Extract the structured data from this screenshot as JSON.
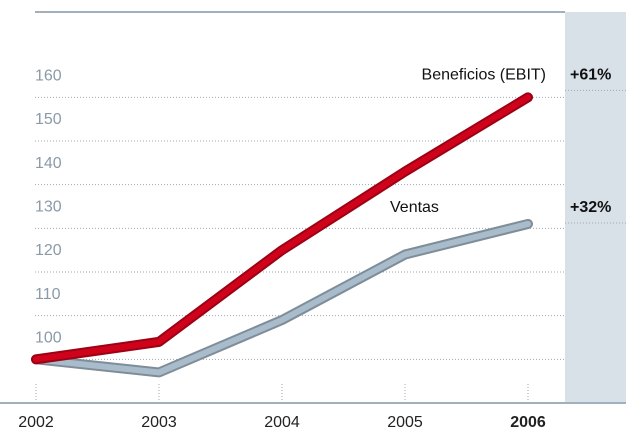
{
  "chart_data": {
    "type": "line",
    "categories": [
      "2002",
      "2003",
      "2004",
      "2005",
      "2006"
    ],
    "series": [
      {
        "name": "Beneficios (EBIT)",
        "color": "#d0021b",
        "values": [
          100,
          104,
          125,
          143,
          160
        ],
        "annotation": "+61%"
      },
      {
        "name": "Ventas",
        "color": "#a9bccb",
        "values": [
          100,
          97,
          109,
          124,
          131
        ],
        "annotation": "+32%"
      }
    ],
    "ylim": [
      90,
      180
    ],
    "yticks": [
      100,
      110,
      120,
      130,
      140,
      150,
      160
    ],
    "grid": true
  }
}
